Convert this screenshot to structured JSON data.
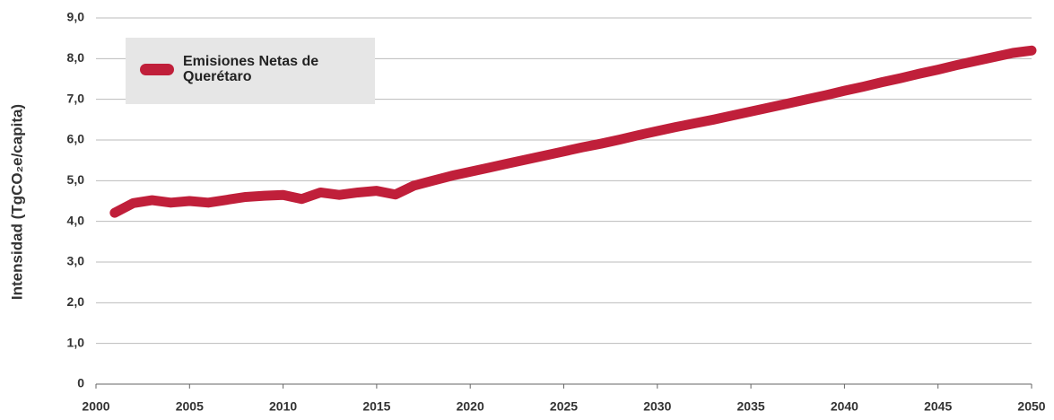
{
  "chart_data": {
    "type": "line",
    "y_label": "Intensidad (TgCO₂e/capita)",
    "x": [
      2001,
      2002,
      2003,
      2004,
      2005,
      2006,
      2007,
      2008,
      2009,
      2010,
      2011,
      2012,
      2013,
      2014,
      2015,
      2016,
      2017,
      2018,
      2019,
      2020,
      2021,
      2022,
      2023,
      2024,
      2025,
      2026,
      2027,
      2028,
      2029,
      2030,
      2031,
      2032,
      2033,
      2034,
      2035,
      2036,
      2037,
      2038,
      2039,
      2040,
      2041,
      2042,
      2043,
      2044,
      2045,
      2046,
      2047,
      2048,
      2049,
      2050
    ],
    "series": [
      {
        "name": "Emisiones Netas de Querétaro",
        "color": "#c01f3a",
        "values": [
          4.21,
          4.45,
          4.52,
          4.46,
          4.5,
          4.46,
          4.53,
          4.6,
          4.63,
          4.65,
          4.55,
          4.71,
          4.65,
          4.71,
          4.75,
          4.66,
          4.88,
          5.0,
          5.12,
          5.22,
          5.32,
          5.42,
          5.52,
          5.62,
          5.72,
          5.82,
          5.91,
          6.01,
          6.12,
          6.22,
          6.32,
          6.41,
          6.5,
          6.6,
          6.7,
          6.8,
          6.9,
          7.0,
          7.1,
          7.21,
          7.31,
          7.42,
          7.52,
          7.63,
          7.73,
          7.84,
          7.94,
          8.04,
          8.14,
          8.2
        ]
      }
    ],
    "xlim": [
      2000,
      2050
    ],
    "xticks": [
      2000,
      2005,
      2010,
      2015,
      2020,
      2025,
      2030,
      2035,
      2040,
      2045,
      2050
    ],
    "ylim": [
      0,
      9
    ],
    "yticks": [
      0,
      {
        "value": 1,
        "label": "1,0"
      },
      {
        "value": 2,
        "label": "2,0"
      },
      {
        "value": 3,
        "label": "3,0"
      },
      {
        "value": 4,
        "label": "4,0"
      },
      {
        "value": 5,
        "label": "5,0"
      },
      {
        "value": 6,
        "label": "6,0"
      },
      {
        "value": 7,
        "label": "7,0"
      },
      {
        "value": 8,
        "label": "8,0"
      },
      {
        "value": 9,
        "label": "9,0"
      }
    ],
    "grid": true,
    "legend": "upper left"
  }
}
